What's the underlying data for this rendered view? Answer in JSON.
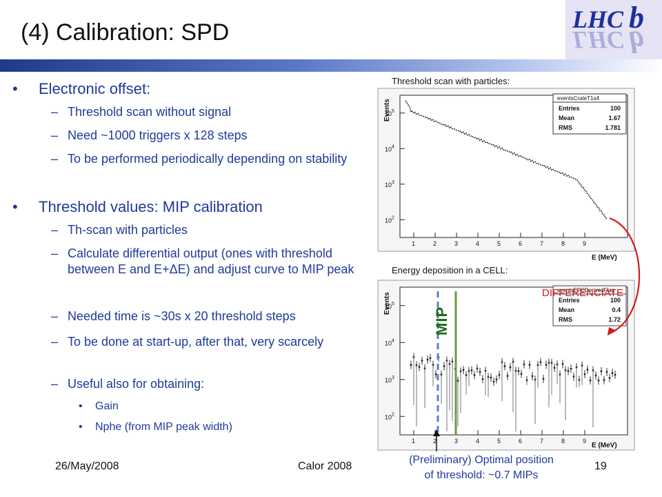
{
  "title": "(4) Calibration: SPD",
  "bullets": {
    "b1": "Electronic offset:",
    "b1_sub": [
      "Threshold scan without signal",
      "Need ~1000 triggers x 128 steps",
      "To be performed periodically depending on stability"
    ],
    "b2": "Threshold values: MIP calibration",
    "b2_sub": [
      "Th-scan with particles",
      "Calculate differential output (ones with threshold between E and E+ΔE) and adjust curve to MIP peak",
      "Needed time is ~30s x 20 threshold steps",
      "To be done at start-up, after that, very scarcely",
      "Useful also for obtaining:"
    ],
    "b3_sub": [
      "Gain",
      "Nphe (from MIP peak width)"
    ]
  },
  "footer": {
    "date": "26/May/2008",
    "conference": "Calor 2008",
    "page": "19"
  },
  "plots": {
    "top_label": "Threshold scan with particles:",
    "bottom_label": "Energy deposition in a CELL:",
    "xlabel": "E (MeV)",
    "ylabel": "Events",
    "stats_title_top": "eventsCrateT1s4",
    "stats_title_bottom": "eventsEPCDerivedFlag",
    "stats_top": [
      [
        "Entries",
        "100"
      ],
      [
        "Mean",
        "1.67"
      ],
      [
        "RMS",
        "1.781"
      ]
    ],
    "stats_bottom": [
      [
        "Entries",
        "100"
      ],
      [
        "Mean",
        "0.4"
      ],
      [
        "RMS",
        "1.72"
      ]
    ],
    "x_ticks": [
      "1",
      "2",
      "3",
      "4",
      "5",
      "6",
      "7",
      "8",
      "9"
    ],
    "y_ticks_top": [
      "10",
      "10",
      "10",
      "10"
    ],
    "y_ticks_top_exp": [
      "5",
      "4",
      "3",
      "2"
    ],
    "y_ticks_bottom": [
      "10",
      "10",
      "10",
      "10"
    ],
    "y_ticks_bottom_exp": [
      "5",
      "4",
      "3",
      "2"
    ]
  },
  "annotations": {
    "differenciate": "DIFFERENCIATE",
    "mip": "MIP",
    "caption_line1": "(Preliminary) Optimal position",
    "caption_line2": "of threshold: ~0.7 MIPs"
  },
  "colors": {
    "title_bar_start": "#1f3a8a",
    "text_blue": "#1f3a9a",
    "mip_line": "#6a9a3a",
    "threshold_line": "#5a7fc8",
    "arrow": "#d21a1a"
  },
  "logo_text": "LHCb"
}
